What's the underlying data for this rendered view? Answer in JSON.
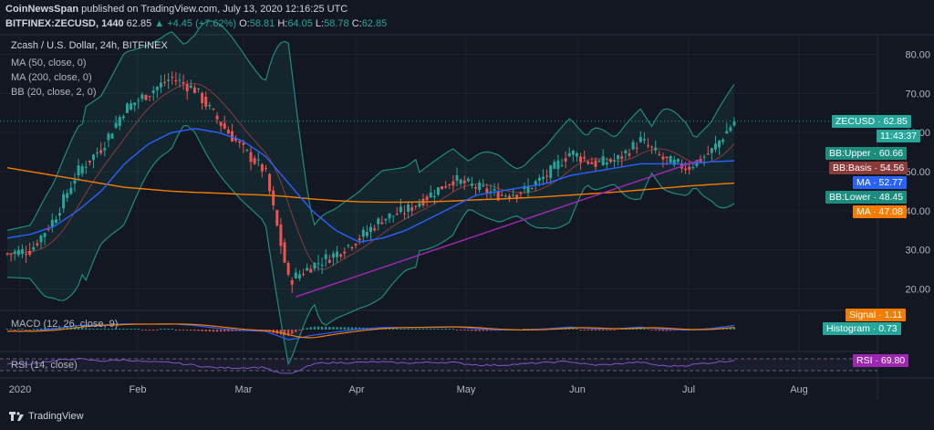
{
  "header": {
    "line1_brand": "CoinNewsSpan",
    "line1_rest": " published on TradingView.com, July 13, 2020 12:16:25 UTC",
    "symbol": "BITFINEX:ZECUSD, 1440",
    "last": "62.85",
    "change": "▲ +4.45 (+7.62%)",
    "ohlc_o_label": "O:",
    "ohlc_o": "58.81",
    "ohlc_h_label": "H:",
    "ohlc_h": "64.05",
    "ohlc_l_label": "L:",
    "ohlc_l": "58.78",
    "ohlc_c_label": "C:",
    "ohlc_c": "62.85"
  },
  "legend": {
    "title": "Zcash / U.S. Dollar, 24h, BITFINEX",
    "ma50": "MA (50, close, 0)",
    "ma200": "MA (200, close, 0)",
    "bb": "BB (20, close, 2, 0)",
    "macd": "MACD (12, 26, close, 9)",
    "rsi": "RSI (14, close)"
  },
  "colors": {
    "background": "#131722",
    "up": "#26a69a",
    "down": "#ef5350",
    "bb_band": "#1e8c7e",
    "bb_basis": "#8b3a3a",
    "ma50": "#2962ff",
    "ma200": "#f57c00",
    "trendline": "#9c27b0",
    "rsi": "#7e57c2"
  },
  "tags": {
    "zecusd_label": "ZECUSD",
    "zecusd_value": "62.85",
    "countdown": "11:43:37",
    "bbupper_label": "BB:Upper",
    "bbupper_value": "60.66",
    "bbbasis_label": "BB:Basis",
    "bbbasis_value": "54.56",
    "ma_label": "MA",
    "ma_value": "52.77",
    "bblower_label": "BB:Lower",
    "bblower_value": "48.45",
    "ma2_label": "MA",
    "ma2_value": "47.08",
    "signal_label": "Signal",
    "signal_value": "1.11",
    "hist_label": "Histogram",
    "hist_value": "0.73",
    "rsi_label": "RSI",
    "rsi_value": "69.80"
  },
  "footer": {
    "brand": "TradingView"
  },
  "chart_data": {
    "type": "line",
    "title": "Zcash / U.S. Dollar, 24h, BITFINEX",
    "ylim": [
      15,
      85
    ],
    "y_ticks": [
      "80.00",
      "70.00",
      "60.00",
      "50.00",
      "40.00",
      "30.00",
      "20.00"
    ],
    "x_ticks": [
      "2020",
      "Feb",
      "Mar",
      "Apr",
      "May",
      "Jun",
      "Jul",
      "Aug"
    ],
    "grid": true,
    "series": [
      {
        "name": "ZECUSD",
        "x": [
          "Jan 1",
          "Jan 8",
          "Jan 15",
          "Jan 20",
          "Jan 27",
          "Feb 3",
          "Feb 8",
          "Feb 13",
          "Feb 18",
          "Feb 24",
          "Mar 1",
          "Mar 8",
          "Mar 12",
          "Mar 17",
          "Mar 24",
          "Apr 1",
          "Apr 8",
          "Apr 15",
          "Apr 22",
          "May 1",
          "May 8",
          "May 15",
          "May 22",
          "Jun 1",
          "Jun 8",
          "Jun 15",
          "Jun 22",
          "Jun 26",
          "Jul 1",
          "Jul 6",
          "Jul 10",
          "Jul 13"
        ],
        "values": [
          29,
          30,
          38,
          50,
          56,
          66,
          70,
          74,
          71,
          63,
          56,
          50,
          22,
          26,
          29,
          33,
          38,
          40,
          44,
          48,
          46,
          44,
          45,
          49,
          55,
          52,
          53,
          58,
          53,
          51,
          55,
          62.85
        ]
      },
      {
        "name": "MA (50)",
        "values": [
          33,
          34,
          36,
          40,
          45,
          52,
          57,
          60,
          61,
          60,
          58,
          54,
          47,
          40,
          35,
          32,
          33,
          35,
          38,
          41,
          44,
          45,
          46,
          47,
          49,
          50,
          51,
          52,
          52,
          52,
          52.5,
          52.77
        ]
      },
      {
        "name": "MA (200)",
        "values": [
          51,
          50,
          49,
          48,
          47,
          46,
          45.5,
          45,
          44.7,
          44.5,
          44.2,
          44,
          43.6,
          43,
          42.6,
          42.3,
          42.2,
          42.2,
          42.3,
          42.5,
          42.8,
          43,
          43.3,
          43.6,
          44,
          44.4,
          44.8,
          45.3,
          45.8,
          46.3,
          46.7,
          47.08
        ]
      }
    ],
    "macd": {
      "signal": 1.11,
      "histogram": 0.73
    },
    "rsi": 69.8
  }
}
